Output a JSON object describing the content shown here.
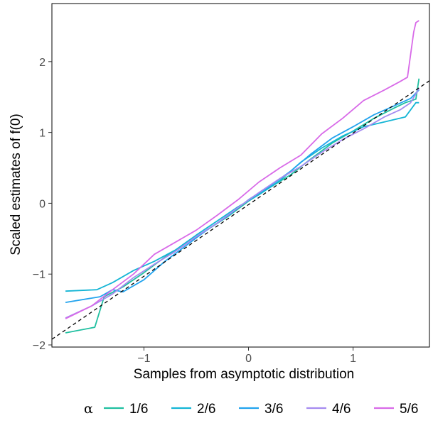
{
  "chart_data": {
    "type": "line",
    "xlabel": "Samples from asymptotic distribution",
    "ylabel": "Scaled estimates of f(0)",
    "xlim": [
      -1.88,
      1.73
    ],
    "ylim": [
      -2.03,
      2.82
    ],
    "x_ticks": [
      -1,
      0,
      1
    ],
    "x_tick_labels": [
      "−1",
      "0",
      "1"
    ],
    "y_ticks": [
      -2,
      -1,
      0,
      1,
      2
    ],
    "y_tick_labels": [
      "−2",
      "−1",
      "0",
      "1",
      "2"
    ],
    "grid": false,
    "legend": {
      "title": "α",
      "position": "bottom"
    },
    "reference_line": {
      "style": "dashed",
      "color": "#000000",
      "x": [
        -1.88,
        1.73
      ],
      "y": [
        -1.92,
        1.73
      ]
    },
    "series": [
      {
        "name": "1/6",
        "color": "#1fbfa0",
        "x": [
          -1.75,
          -1.47,
          -1.38,
          -1.2,
          -1.0,
          -0.8,
          -0.6,
          -0.4,
          -0.2,
          0.0,
          0.2,
          0.4,
          0.6,
          0.8,
          1.0,
          1.2,
          1.4,
          1.5,
          1.6,
          1.63
        ],
        "y": [
          -1.83,
          -1.75,
          -1.32,
          -1.18,
          -0.98,
          -0.76,
          -0.57,
          -0.38,
          -0.19,
          0.03,
          0.22,
          0.4,
          0.63,
          0.85,
          1.02,
          1.2,
          1.35,
          1.42,
          1.47,
          1.76
        ]
      },
      {
        "name": "2/6",
        "color": "#14b5d5",
        "x": [
          -1.75,
          -1.45,
          -1.3,
          -1.1,
          -0.9,
          -0.7,
          -0.5,
          -0.3,
          -0.1,
          0.1,
          0.3,
          0.5,
          0.7,
          0.9,
          1.1,
          1.3,
          1.5,
          1.6,
          1.63
        ],
        "y": [
          -1.24,
          -1.22,
          -1.12,
          -0.95,
          -0.82,
          -0.66,
          -0.45,
          -0.25,
          -0.05,
          0.12,
          0.32,
          0.58,
          0.78,
          0.95,
          1.08,
          1.15,
          1.22,
          1.42,
          1.42
        ]
      },
      {
        "name": "3/6",
        "color": "#22a3ee",
        "x": [
          -1.75,
          -1.42,
          -1.3,
          -1.2,
          -1.0,
          -0.8,
          -0.6,
          -0.4,
          -0.2,
          0.0,
          0.2,
          0.4,
          0.6,
          0.8,
          1.0,
          1.2,
          1.4,
          1.55,
          1.63
        ],
        "y": [
          -1.4,
          -1.32,
          -1.22,
          -1.25,
          -1.08,
          -0.82,
          -0.6,
          -0.38,
          -0.18,
          0.05,
          0.24,
          0.45,
          0.7,
          0.92,
          1.08,
          1.25,
          1.38,
          1.48,
          1.6
        ]
      },
      {
        "name": "4/6",
        "color": "#a58bf0",
        "x": [
          -1.75,
          -1.5,
          -1.3,
          -1.1,
          -0.9,
          -0.7,
          -0.5,
          -0.3,
          -0.1,
          0.1,
          0.3,
          0.5,
          0.7,
          0.9,
          1.1,
          1.3,
          1.45,
          1.55,
          1.63
        ],
        "y": [
          -1.62,
          -1.45,
          -1.28,
          -1.05,
          -0.86,
          -0.68,
          -0.47,
          -0.28,
          -0.06,
          0.15,
          0.35,
          0.52,
          0.72,
          0.9,
          1.05,
          1.22,
          1.32,
          1.42,
          1.62
        ]
      },
      {
        "name": "5/6",
        "color": "#d86ae8",
        "x": [
          -1.75,
          -1.5,
          -1.3,
          -1.1,
          -0.9,
          -0.7,
          -0.5,
          -0.3,
          -0.1,
          0.1,
          0.3,
          0.5,
          0.7,
          0.9,
          1.1,
          1.3,
          1.45,
          1.52,
          1.55,
          1.58,
          1.6,
          1.63
        ],
        "y": [
          -1.63,
          -1.45,
          -1.22,
          -1.0,
          -0.72,
          -0.55,
          -0.38,
          -0.17,
          0.05,
          0.3,
          0.5,
          0.68,
          0.98,
          1.2,
          1.45,
          1.6,
          1.72,
          1.78,
          2.1,
          2.42,
          2.55,
          2.58
        ]
      }
    ]
  }
}
